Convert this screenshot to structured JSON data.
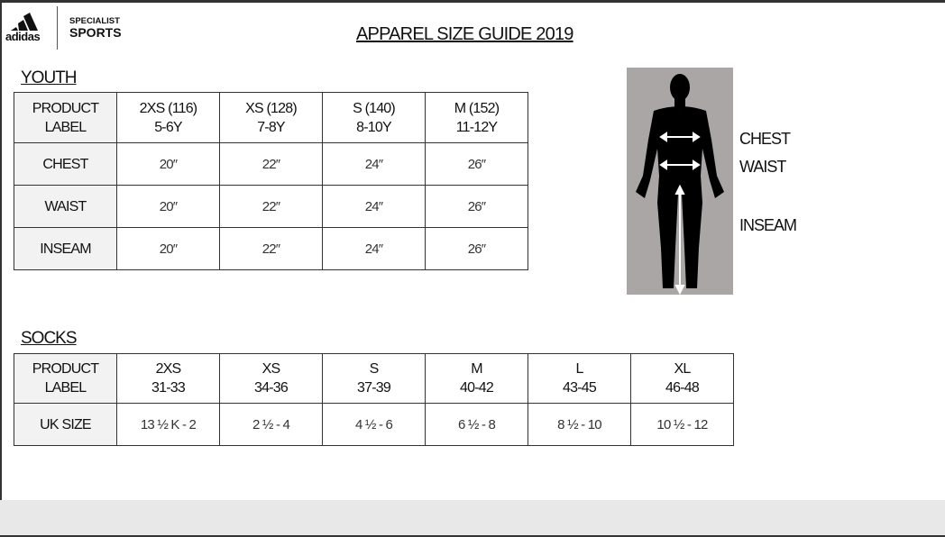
{
  "header": {
    "logo": "adidas",
    "brand_top": "SPECIALIST",
    "brand_bottom": "SPORTS",
    "title": "APPAREL SIZE GUIDE 2019"
  },
  "youth": {
    "heading": "YOUTH",
    "label_header": [
      "PRODUCT",
      "LABEL"
    ],
    "columns": [
      [
        "2XS (116)",
        "5-6Y"
      ],
      [
        "XS (128)",
        "7-8Y"
      ],
      [
        "S (140)",
        "8-10Y"
      ],
      [
        "M (152)",
        "11-12Y"
      ]
    ],
    "rows": [
      {
        "label": "CHEST",
        "values": [
          "20″",
          "22″",
          "24″",
          "26″"
        ]
      },
      {
        "label": "WAIST",
        "values": [
          "20″",
          "22″",
          "24″",
          "26″"
        ]
      },
      {
        "label": "INSEAM",
        "values": [
          "20″",
          "22″",
          "24″",
          "26″"
        ]
      }
    ]
  },
  "socks": {
    "heading": "SOCKS",
    "label_header": [
      "PRODUCT",
      "LABEL"
    ],
    "columns": [
      [
        "2XS",
        "31-33"
      ],
      [
        "XS",
        "34-36"
      ],
      [
        "S",
        "37-39"
      ],
      [
        "M",
        "40-42"
      ],
      [
        "L",
        "43-45"
      ],
      [
        "XL",
        "46-48"
      ]
    ],
    "rows": [
      {
        "label": "UK SIZE",
        "values": [
          "13 ½ K - 2",
          "2 ½ - 4",
          "4 ½ - 6",
          "6 ½ - 8",
          "8 ½ - 10",
          "10 ½ - 12"
        ]
      }
    ]
  },
  "figure": {
    "labels": [
      "CHEST",
      "WAIST",
      "INSEAM"
    ]
  }
}
